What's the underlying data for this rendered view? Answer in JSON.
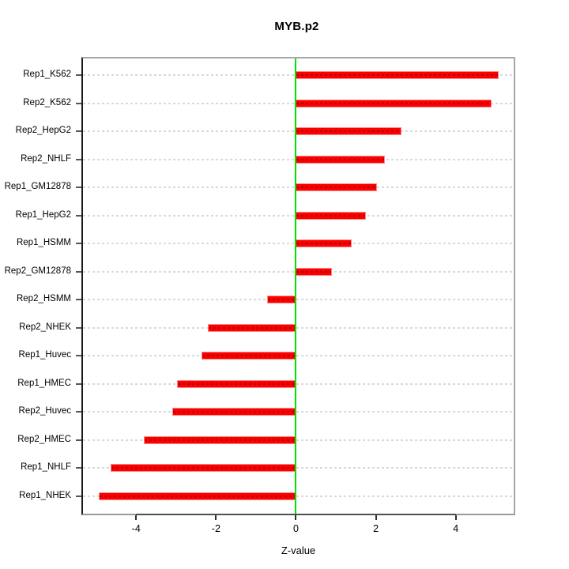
{
  "header": {
    "title": "MYB.p2"
  },
  "axes": {
    "xlabel": "Z-value"
  },
  "chart_data": {
    "type": "bar",
    "orientation": "horizontal",
    "title": "MYB.p2",
    "xlabel": "Z-value",
    "ylabel": "",
    "categories": [
      "Rep1_K562",
      "Rep2_K562",
      "Rep2_HepG2",
      "Rep2_NHLF",
      "Rep1_GM12878",
      "Rep1_HepG2",
      "Rep1_HSMM",
      "Rep2_GM12878",
      "Rep2_HSMM",
      "Rep2_NHEK",
      "Rep1_Huvec",
      "Rep1_HMEC",
      "Rep2_Huvec",
      "Rep2_HMEC",
      "Rep1_NHLF",
      "Rep1_NHEK"
    ],
    "values": [
      5.07,
      4.89,
      2.64,
      2.23,
      2.03,
      1.75,
      1.39,
      0.91,
      -0.72,
      -2.21,
      -2.37,
      -2.98,
      -3.1,
      -3.81,
      -4.63,
      -4.93
    ],
    "xticks": [
      -4,
      -2,
      0,
      2,
      4
    ],
    "xtick_labels": [
      "-4",
      "-2",
      "0",
      "2",
      "4"
    ],
    "xlim": [
      -5.33,
      5.45
    ],
    "zero_reference_line": 0,
    "grid": "dashed horizontal line per category, light gray",
    "legend": "none",
    "colors": {
      "bar_fill": "#fa0000",
      "bar_edge": "#ff8a8a",
      "zero_line": "#00e400",
      "grid_line": "#d9d9d9",
      "frame": "#a6a6a6",
      "text": "#000000"
    }
  }
}
